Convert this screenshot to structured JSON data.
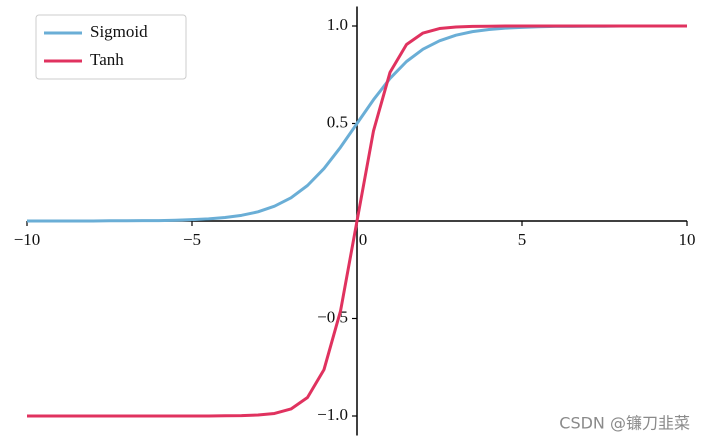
{
  "chart_data": {
    "type": "line",
    "x": [
      -10,
      -9.5,
      -9,
      -8.5,
      -8,
      -7.5,
      -7,
      -6.5,
      -6,
      -5.5,
      -5,
      -4.5,
      -4,
      -3.5,
      -3,
      -2.5,
      -2,
      -1.5,
      -1,
      -0.5,
      0,
      0.5,
      1,
      1.5,
      2,
      2.5,
      3,
      3.5,
      4,
      4.5,
      5,
      5.5,
      6,
      6.5,
      7,
      7.5,
      8,
      8.5,
      9,
      9.5,
      10
    ],
    "series": [
      {
        "name": "Sigmoid",
        "color": "#6aaed6",
        "values": [
          0,
          0,
          0,
          0,
          0,
          0.001,
          0.001,
          0.002,
          0.002,
          0.004,
          0.007,
          0.011,
          0.018,
          0.029,
          0.047,
          0.076,
          0.119,
          0.182,
          0.269,
          0.378,
          0.5,
          0.622,
          0.731,
          0.818,
          0.881,
          0.924,
          0.953,
          0.971,
          0.982,
          0.989,
          0.993,
          0.996,
          0.998,
          0.998,
          0.999,
          0.999,
          1,
          1,
          1,
          1,
          1
        ]
      },
      {
        "name": "Tanh",
        "color": "#e0325f",
        "values": [
          -1,
          -1,
          -1,
          -1,
          -1,
          -1,
          -1,
          -1,
          -1,
          -1,
          -1,
          -1,
          -0.999,
          -0.998,
          -0.995,
          -0.987,
          -0.964,
          -0.905,
          -0.762,
          -0.462,
          0,
          0.462,
          0.762,
          0.905,
          0.964,
          0.987,
          0.995,
          0.998,
          0.999,
          1,
          1,
          1,
          1,
          1,
          1,
          1,
          1,
          1,
          1,
          1,
          1
        ]
      }
    ],
    "xlim": [
      -10,
      10
    ],
    "ylim": [
      -1.1,
      1.1
    ],
    "xticks": [
      {
        "value": -10,
        "label": "−10"
      },
      {
        "value": -5,
        "label": "−5"
      },
      0,
      5,
      10
    ],
    "yticks": [
      {
        "value": -1,
        "label": "−1.0"
      },
      {
        "value": -0.5,
        "label": "−0.5"
      },
      {
        "value": 0.5,
        "label": "0.5"
      },
      {
        "value": 1,
        "label": "1.0"
      }
    ],
    "legend": "upper left",
    "watermark": "CSDN @镰刀韭菜"
  }
}
